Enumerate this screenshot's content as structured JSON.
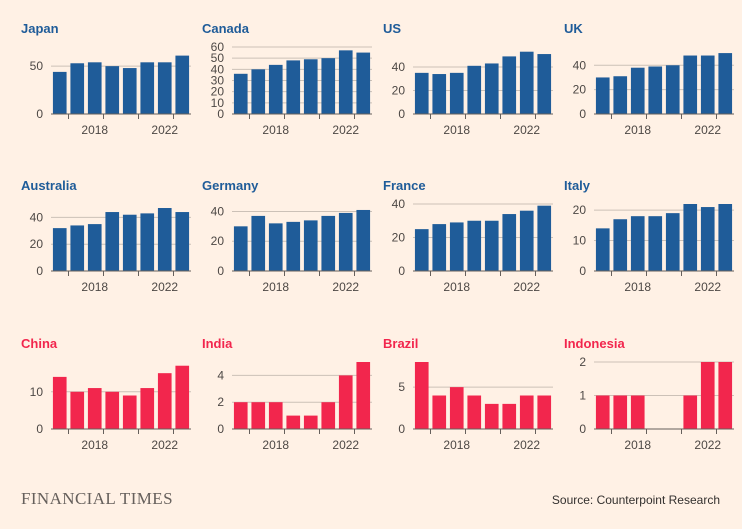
{
  "chart_data": [
    {
      "type": "bar",
      "title": "Japan",
      "group": "developed",
      "categories": [
        "2016",
        "2017",
        "2018",
        "2019",
        "2020",
        "2021",
        "2022",
        "2023"
      ],
      "values": [
        44,
        53,
        54,
        50,
        48,
        54,
        54,
        61
      ],
      "ylim": [
        0,
        70
      ],
      "yticks": [
        0,
        50
      ],
      "xtick_labels": [
        "2018",
        "2022"
      ],
      "xlabel": "",
      "ylabel": ""
    },
    {
      "type": "bar",
      "title": "Canada",
      "group": "developed",
      "categories": [
        "2016",
        "2017",
        "2018",
        "2019",
        "2020",
        "2021",
        "2022",
        "2023"
      ],
      "values": [
        36,
        40,
        44,
        48,
        49,
        50,
        57,
        55
      ],
      "ylim": [
        0,
        60
      ],
      "yticks": [
        0,
        10,
        20,
        30,
        40,
        50,
        60
      ],
      "xtick_labels": [
        "2018",
        "2022"
      ],
      "xlabel": "",
      "ylabel": ""
    },
    {
      "type": "bar",
      "title": "US",
      "group": "developed",
      "categories": [
        "2016",
        "2017",
        "2018",
        "2019",
        "2020",
        "2021",
        "2022",
        "2023"
      ],
      "values": [
        35,
        34,
        35,
        41,
        43,
        49,
        53,
        51
      ],
      "ylim": [
        0,
        57
      ],
      "yticks": [
        0,
        20,
        40
      ],
      "xtick_labels": [
        "2018",
        "2022"
      ],
      "xlabel": "",
      "ylabel": ""
    },
    {
      "type": "bar",
      "title": "UK",
      "group": "developed",
      "categories": [
        "2016",
        "2017",
        "2018",
        "2019",
        "2020",
        "2021",
        "2022",
        "2023"
      ],
      "values": [
        30,
        31,
        38,
        39,
        40,
        48,
        48,
        50
      ],
      "ylim": [
        0,
        55
      ],
      "yticks": [
        0,
        20,
        40
      ],
      "xtick_labels": [
        "2018",
        "2022"
      ],
      "xlabel": "",
      "ylabel": ""
    },
    {
      "type": "bar",
      "title": "Australia",
      "group": "developed",
      "categories": [
        "2016",
        "2017",
        "2018",
        "2019",
        "2020",
        "2021",
        "2022",
        "2023"
      ],
      "values": [
        32,
        34,
        35,
        44,
        42,
        43,
        47,
        44
      ],
      "ylim": [
        0,
        50
      ],
      "yticks": [
        0,
        20,
        40
      ],
      "xtick_labels": [
        "2018",
        "2022"
      ],
      "xlabel": "",
      "ylabel": ""
    },
    {
      "type": "bar",
      "title": "Germany",
      "group": "developed",
      "categories": [
        "2016",
        "2017",
        "2018",
        "2019",
        "2020",
        "2021",
        "2022",
        "2023"
      ],
      "values": [
        30,
        37,
        32,
        33,
        34,
        37,
        39,
        41
      ],
      "ylim": [
        0,
        45
      ],
      "yticks": [
        0,
        20,
        40
      ],
      "xtick_labels": [
        "2018",
        "2022"
      ],
      "xlabel": "",
      "ylabel": ""
    },
    {
      "type": "bar",
      "title": "France",
      "group": "developed",
      "categories": [
        "2016",
        "2017",
        "2018",
        "2019",
        "2020",
        "2021",
        "2022",
        "2023"
      ],
      "values": [
        25,
        28,
        29,
        30,
        30,
        34,
        36,
        39
      ],
      "ylim": [
        0,
        40
      ],
      "yticks": [
        0,
        20,
        40
      ],
      "xtick_labels": [
        "2018",
        "2022"
      ],
      "xlabel": "",
      "ylabel": ""
    },
    {
      "type": "bar",
      "title": "Italy",
      "group": "developed",
      "categories": [
        "2016",
        "2017",
        "2018",
        "2019",
        "2020",
        "2021",
        "2022",
        "2023"
      ],
      "values": [
        14,
        17,
        18,
        18,
        19,
        22,
        21,
        22
      ],
      "ylim": [
        0,
        22
      ],
      "yticks": [
        0,
        10,
        20
      ],
      "xtick_labels": [
        "2018",
        "2022"
      ],
      "xlabel": "",
      "ylabel": ""
    },
    {
      "type": "bar",
      "title": "China",
      "group": "emerging",
      "categories": [
        "2016",
        "2017",
        "2018",
        "2019",
        "2020",
        "2021",
        "2022",
        "2023"
      ],
      "values": [
        14,
        10,
        11,
        10,
        9,
        11,
        15,
        17
      ],
      "ylim": [
        0,
        18
      ],
      "yticks": [
        0,
        10
      ],
      "xtick_labels": [
        "2018",
        "2022"
      ],
      "xlabel": "",
      "ylabel": ""
    },
    {
      "type": "bar",
      "title": "India",
      "group": "emerging",
      "categories": [
        "2016",
        "2017",
        "2018",
        "2019",
        "2020",
        "2021",
        "2022",
        "2023"
      ],
      "values": [
        2,
        2,
        2,
        1,
        1,
        2,
        4,
        5
      ],
      "ylim": [
        0,
        5
      ],
      "yticks": [
        0,
        2,
        4
      ],
      "xtick_labels": [
        "2018",
        "2022"
      ],
      "xlabel": "",
      "ylabel": ""
    },
    {
      "type": "bar",
      "title": "Brazil",
      "group": "emerging",
      "categories": [
        "2016",
        "2017",
        "2018",
        "2019",
        "2020",
        "2021",
        "2022",
        "2023"
      ],
      "values": [
        8,
        4,
        5,
        4,
        3,
        3,
        4,
        4
      ],
      "ylim": [
        0,
        8
      ],
      "yticks": [
        0,
        5
      ],
      "xtick_labels": [
        "2018",
        "2022"
      ],
      "xlabel": "",
      "ylabel": ""
    },
    {
      "type": "bar",
      "title": "Indonesia",
      "group": "emerging",
      "categories": [
        "2016",
        "2017",
        "2018",
        "2019",
        "2020",
        "2021",
        "2022",
        "2023"
      ],
      "values": [
        1,
        1,
        1,
        0,
        0,
        1,
        2,
        2
      ],
      "ylim": [
        0,
        2
      ],
      "yticks": [
        0,
        1,
        2
      ],
      "xtick_labels": [
        "2018",
        "2022"
      ],
      "xlabel": "",
      "ylabel": ""
    }
  ],
  "colors": {
    "developed": "#1f5c99",
    "emerging": "#f2264d",
    "background": "#fff1e5"
  },
  "footer": {
    "brand": "FINANCIAL TIMES",
    "source": "Source: Counterpoint Research"
  }
}
